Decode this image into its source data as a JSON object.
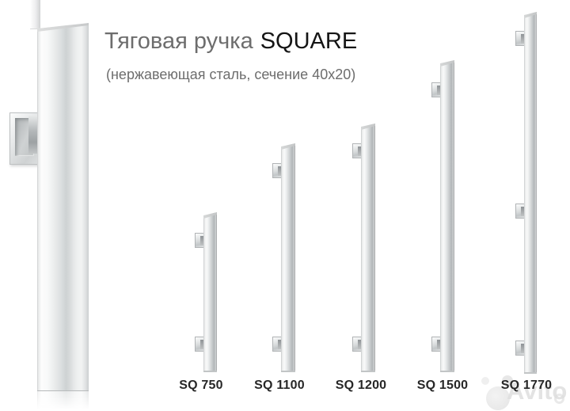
{
  "title": {
    "prefix": "Тяговая ручка",
    "brand": "SQUARE"
  },
  "subtitle": "(нержавеющая сталь, сечение 40x20)",
  "handles": [
    {
      "label": "SQ 750"
    },
    {
      "label": "SQ 1100"
    },
    {
      "label": "SQ 1200"
    },
    {
      "label": "SQ 1500"
    },
    {
      "label": "SQ 1770"
    }
  ],
  "watermark": {
    "text": "Avito"
  },
  "colors": {
    "background": "#ffffff",
    "title_gray": "#6d6d6d",
    "title_black": "#151515",
    "label_text": "#272727",
    "steel_light": "#f8f9f9",
    "steel_mid": "#ced2d3",
    "steel_dark": "#9ea3a5",
    "watermark_gray": "#e7e7e7"
  }
}
